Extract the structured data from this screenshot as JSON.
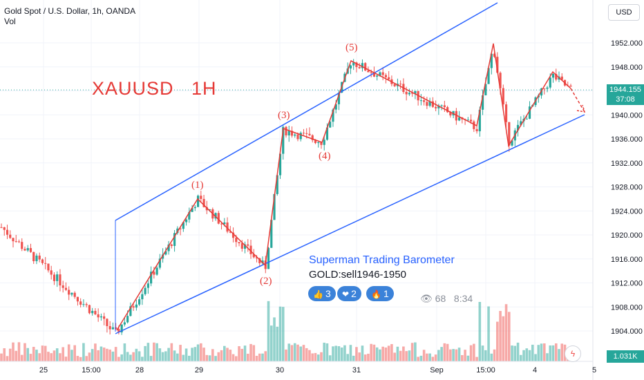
{
  "header": {
    "title": "Gold Spot / U.S. Dollar, 1h, OANDA",
    "volume_label": "Vol"
  },
  "currency_button": "USD",
  "annotation_title": "XAUUSD   1H",
  "wave_labels": [
    "(1)",
    "(2)",
    "(3)",
    "(4)",
    "(5)"
  ],
  "price_tag": {
    "price": "1944.155",
    "countdown": "37:08"
  },
  "volume_tag": "1.031K",
  "barometer": {
    "title": "Superman Trading Barometer",
    "signal": "GOLD:sell1946-1950",
    "reactions": [
      {
        "icon": "thumbs-up-icon",
        "count": "3"
      },
      {
        "icon": "heart-icon",
        "count": "2"
      },
      {
        "icon": "fire-icon",
        "count": "1"
      }
    ],
    "views": "68",
    "time": "8:34"
  },
  "colors": {
    "up": "#26a69a",
    "down": "#ef5350",
    "channel": "#2962ff",
    "waves": "#e53935"
  },
  "chart_data": {
    "type": "candlestick",
    "title": "Gold Spot / U.S. Dollar, 1h, OANDA",
    "y_axis": {
      "ticks": [
        "1952.000",
        "1948.000",
        "1944.000",
        "1940.000",
        "1936.000",
        "1932.000",
        "1928.000",
        "1924.000",
        "1920.000",
        "1916.000",
        "1912.000",
        "1908.000",
        "1904.000"
      ],
      "range": [
        1900.5,
        1956.5
      ]
    },
    "x_axis": {
      "ticks": [
        "25",
        "15:00",
        "28",
        "29",
        "30",
        "31",
        "Sep",
        "15:00",
        "4",
        "5"
      ]
    },
    "key_points": [
      {
        "label": "start",
        "price": 1921.5
      },
      {
        "label": "low",
        "price": 1903.5
      },
      {
        "label": "(1)",
        "price": 1926.0
      },
      {
        "label": "(2)",
        "price": 1914.5
      },
      {
        "label": "(3)",
        "price": 1937.5
      },
      {
        "label": "(4)",
        "price": 1935.5
      },
      {
        "label": "(5)",
        "price": 1949.0
      },
      {
        "label": "swing-low",
        "price": 1937.8
      },
      {
        "label": "swing-high",
        "price": 1951.5
      },
      {
        "label": "low-2",
        "price": 1935.5
      },
      {
        "label": "high-2",
        "price": 1946.5
      },
      {
        "label": "last",
        "price": 1944.155
      }
    ],
    "last_price": 1944.155,
    "last_volume": "1.031K",
    "projection": {
      "from": 1944.155,
      "to": 1940.5
    },
    "channel": {
      "upper": "ascending",
      "lower": "ascending"
    }
  }
}
